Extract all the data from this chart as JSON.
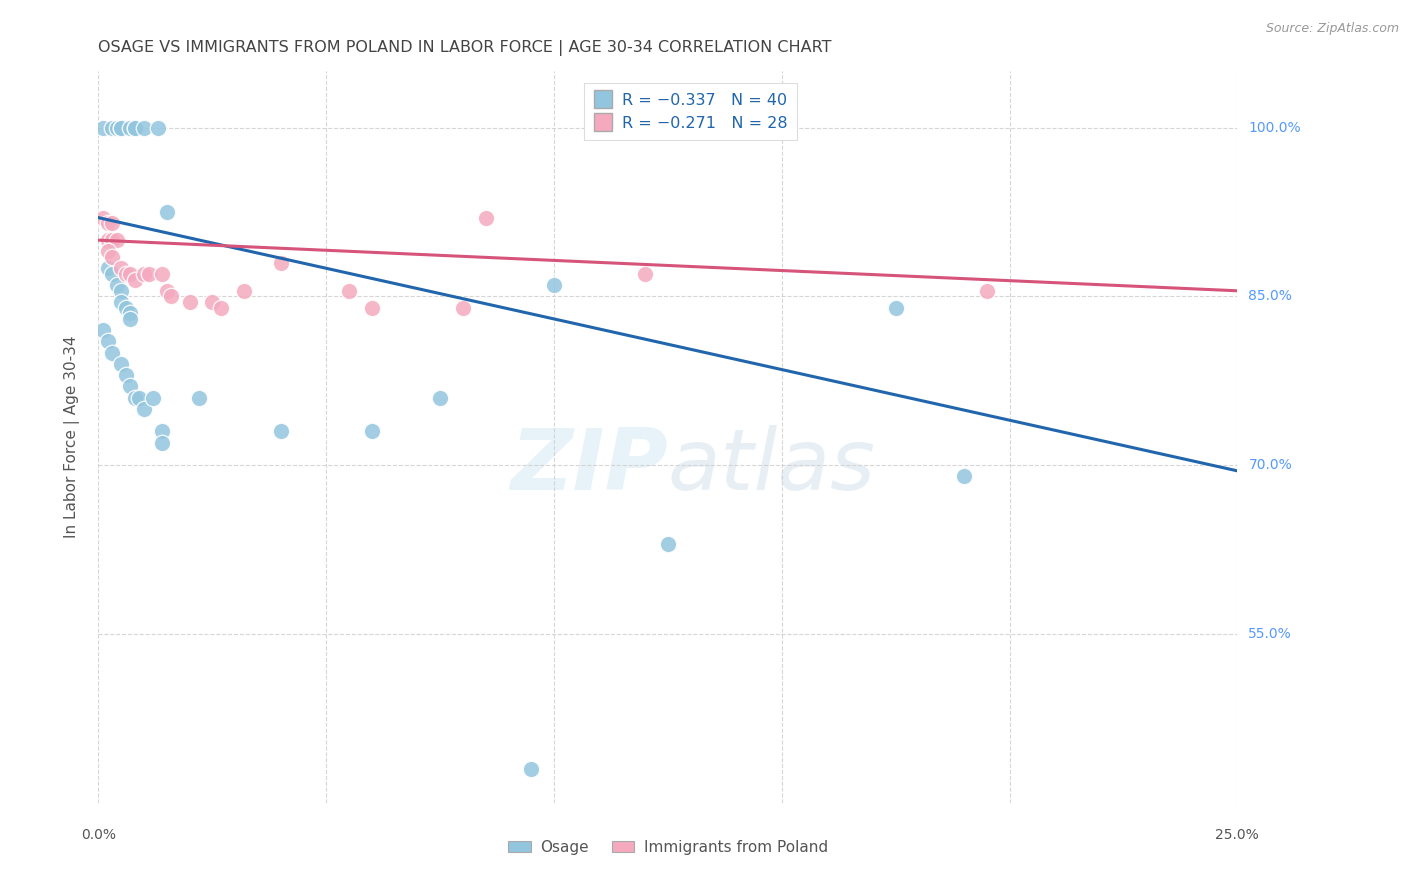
{
  "title": "OSAGE VS IMMIGRANTS FROM POLAND IN LABOR FORCE | AGE 30-34 CORRELATION CHART",
  "source": "Source: ZipAtlas.com",
  "ylabel": "In Labor Force | Age 30-34",
  "xmin": 0.0,
  "xmax": 0.25,
  "ymin": 0.4,
  "ymax": 1.05,
  "yticks": [
    0.55,
    0.7,
    0.85,
    1.0
  ],
  "ytick_labels": [
    "55.0%",
    "70.0%",
    "85.0%",
    "100.0%"
  ],
  "xticks": [
    0.0,
    0.05,
    0.1,
    0.15,
    0.2,
    0.25
  ],
  "blue_scatter": [
    [
      0.001,
      1.0
    ],
    [
      0.003,
      1.0
    ],
    [
      0.004,
      1.0
    ],
    [
      0.005,
      1.0
    ],
    [
      0.005,
      1.0
    ],
    [
      0.007,
      1.0
    ],
    [
      0.008,
      1.0
    ],
    [
      0.008,
      1.0
    ],
    [
      0.01,
      1.0
    ],
    [
      0.013,
      1.0
    ],
    [
      0.015,
      0.925
    ],
    [
      0.002,
      0.875
    ],
    [
      0.003,
      0.87
    ],
    [
      0.004,
      0.86
    ],
    [
      0.005,
      0.855
    ],
    [
      0.005,
      0.845
    ],
    [
      0.006,
      0.84
    ],
    [
      0.007,
      0.835
    ],
    [
      0.007,
      0.83
    ],
    [
      0.001,
      0.82
    ],
    [
      0.002,
      0.81
    ],
    [
      0.003,
      0.8
    ],
    [
      0.005,
      0.79
    ],
    [
      0.006,
      0.78
    ],
    [
      0.007,
      0.77
    ],
    [
      0.008,
      0.76
    ],
    [
      0.009,
      0.76
    ],
    [
      0.01,
      0.75
    ],
    [
      0.012,
      0.76
    ],
    [
      0.014,
      0.73
    ],
    [
      0.014,
      0.72
    ],
    [
      0.022,
      0.76
    ],
    [
      0.04,
      0.73
    ],
    [
      0.06,
      0.73
    ],
    [
      0.075,
      0.76
    ],
    [
      0.095,
      0.43
    ],
    [
      0.125,
      0.63
    ],
    [
      0.175,
      0.84
    ],
    [
      0.19,
      0.69
    ],
    [
      0.1,
      0.86
    ]
  ],
  "pink_scatter": [
    [
      0.001,
      0.92
    ],
    [
      0.002,
      0.915
    ],
    [
      0.003,
      0.915
    ],
    [
      0.002,
      0.9
    ],
    [
      0.003,
      0.9
    ],
    [
      0.004,
      0.9
    ],
    [
      0.002,
      0.89
    ],
    [
      0.003,
      0.885
    ],
    [
      0.005,
      0.875
    ],
    [
      0.006,
      0.87
    ],
    [
      0.007,
      0.87
    ],
    [
      0.008,
      0.865
    ],
    [
      0.01,
      0.87
    ],
    [
      0.011,
      0.87
    ],
    [
      0.014,
      0.87
    ],
    [
      0.015,
      0.855
    ],
    [
      0.016,
      0.85
    ],
    [
      0.02,
      0.845
    ],
    [
      0.025,
      0.845
    ],
    [
      0.027,
      0.84
    ],
    [
      0.032,
      0.855
    ],
    [
      0.04,
      0.88
    ],
    [
      0.055,
      0.855
    ],
    [
      0.06,
      0.84
    ],
    [
      0.08,
      0.84
    ],
    [
      0.085,
      0.92
    ],
    [
      0.12,
      0.87
    ],
    [
      0.195,
      0.855
    ]
  ],
  "blue_line_x": [
    0.0,
    0.25
  ],
  "blue_line_y": [
    0.92,
    0.695
  ],
  "pink_line_x": [
    0.0,
    0.25
  ],
  "pink_line_y": [
    0.9,
    0.855
  ],
  "blue_color": "#92c5de",
  "pink_color": "#f4a9be",
  "blue_line_color": "#2166ac",
  "pink_line_color": "#d6547a",
  "grid_color": "#cccccc",
  "watermark_zip": "ZIP",
  "watermark_atlas": "atlas",
  "legend_text_color": "#2166ac",
  "title_color": "#444444",
  "right_label_color": "#5599ff",
  "source_color": "#999999",
  "background_color": "#ffffff"
}
